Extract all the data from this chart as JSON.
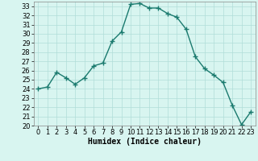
{
  "x": [
    0,
    1,
    2,
    3,
    4,
    5,
    6,
    7,
    8,
    9,
    10,
    11,
    12,
    13,
    14,
    15,
    16,
    17,
    18,
    19,
    20,
    21,
    22,
    23
  ],
  "y": [
    24.0,
    24.2,
    25.8,
    25.2,
    24.5,
    25.2,
    26.5,
    26.8,
    29.2,
    30.2,
    33.2,
    33.3,
    32.8,
    32.8,
    32.2,
    31.8,
    30.5,
    27.5,
    26.2,
    25.5,
    24.7,
    22.2,
    20.1,
    21.5
  ],
  "line_color": "#1a7a6e",
  "marker": "+",
  "marker_size": 4,
  "bg_color": "#d8f5f0",
  "grid_color": "#b0ddd8",
  "xlabel": "Humidex (Indice chaleur)",
  "xlim": [
    -0.5,
    23.5
  ],
  "ylim": [
    20,
    33.5
  ],
  "yticks": [
    20,
    21,
    22,
    23,
    24,
    25,
    26,
    27,
    28,
    29,
    30,
    31,
    32,
    33
  ],
  "xticks": [
    0,
    1,
    2,
    3,
    4,
    5,
    6,
    7,
    8,
    9,
    10,
    11,
    12,
    13,
    14,
    15,
    16,
    17,
    18,
    19,
    20,
    21,
    22,
    23
  ],
  "line_width": 1.0,
  "xlabel_fontsize": 7,
  "tick_fontsize": 6,
  "marker_edge_width": 1.0
}
